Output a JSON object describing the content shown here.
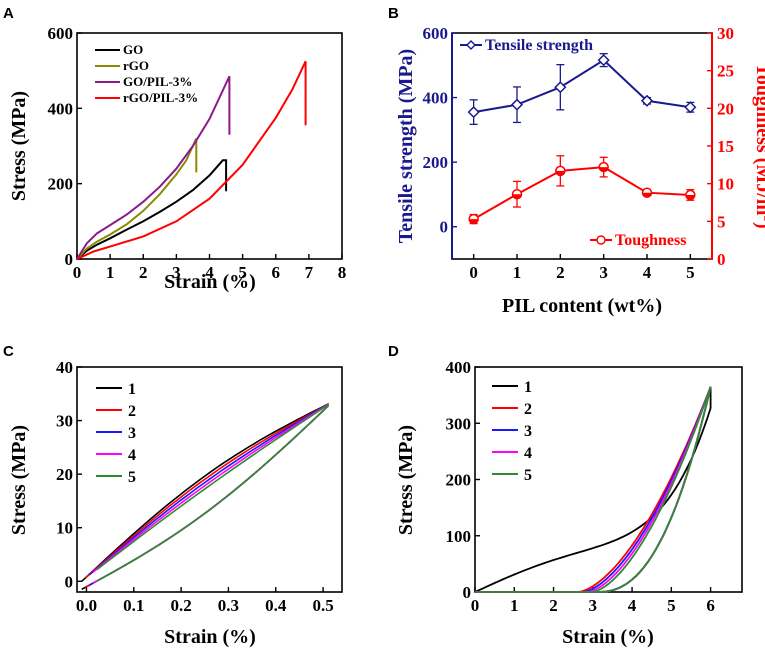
{
  "chart_data": [
    {
      "panel": "A",
      "type": "line",
      "xlabel": "Strain (%)",
      "ylabel": "Stress (MPa)",
      "xlim": [
        0,
        8
      ],
      "ylim": [
        0,
        600
      ],
      "xticks": [
        0,
        1,
        2,
        3,
        4,
        5,
        6,
        7,
        8
      ],
      "yticks": [
        0,
        200,
        400,
        600
      ],
      "legend_position": "top-left",
      "series": [
        {
          "name": "GO",
          "color": "#000000",
          "x": [
            0,
            0.3,
            0.6,
            1.0,
            1.5,
            2.0,
            2.5,
            3.0,
            3.5,
            4.0,
            4.4,
            4.5,
            4.5
          ],
          "y": [
            0,
            22,
            38,
            55,
            78,
            100,
            125,
            152,
            183,
            222,
            262,
            262,
            180
          ]
        },
        {
          "name": "rGO",
          "color": "#8b8b00",
          "x": [
            0,
            0.3,
            0.6,
            1.0,
            1.5,
            2.0,
            2.5,
            3.0,
            3.3,
            3.6,
            3.6
          ],
          "y": [
            0,
            28,
            46,
            65,
            92,
            128,
            172,
            225,
            262,
            320,
            230
          ]
        },
        {
          "name": "GO/PIL-3%",
          "color": "#8b1a8b",
          "x": [
            0,
            0.3,
            0.6,
            1.0,
            1.5,
            2.0,
            2.5,
            3.0,
            3.5,
            4.0,
            4.6,
            4.6
          ],
          "y": [
            0,
            42,
            68,
            90,
            118,
            152,
            192,
            240,
            300,
            372,
            485,
            330
          ]
        },
        {
          "name": "rGO/PIL-3%",
          "color": "#ff0000",
          "x": [
            0,
            0.5,
            1.0,
            2.0,
            3.0,
            4.0,
            5.0,
            6.0,
            6.5,
            6.9,
            6.9
          ],
          "y": [
            0,
            20,
            33,
            60,
            100,
            160,
            250,
            375,
            450,
            525,
            355
          ]
        }
      ]
    },
    {
      "panel": "B",
      "type": "line",
      "xlabel": "PIL content (wt%)",
      "ylabel": "Tensile strength (MPa)",
      "ylabel_right": "Toughness (MJ/m",
      "ylabel_right_sup": "3",
      "ylabel_right_end": ")",
      "categories": [
        0,
        1,
        2,
        3,
        4,
        5
      ],
      "xlim": [
        -0.5,
        5.5
      ],
      "ylim": [
        -100,
        600
      ],
      "xticks": [
        0,
        1,
        2,
        3,
        4,
        5
      ],
      "yticks": [
        0,
        200,
        400,
        600
      ],
      "ylim_right": [
        0,
        30
      ],
      "yticks_right": [
        0,
        5,
        10,
        15,
        20,
        25,
        30
      ],
      "series": [
        {
          "name": "Tensile strength",
          "color": "#1a1a8c",
          "axis": "left",
          "values": [
            355,
            378,
            432,
            516,
            390,
            370
          ],
          "errors": [
            38,
            55,
            70,
            20,
            10,
            15
          ]
        },
        {
          "name": "Toughness",
          "color": "#ff0000",
          "axis": "right",
          "values": [
            5.3,
            8.6,
            11.7,
            12.2,
            8.8,
            8.5
          ],
          "errors": [
            0.6,
            1.7,
            2.0,
            1.3,
            0.4,
            0.7
          ]
        }
      ]
    },
    {
      "panel": "C",
      "type": "line",
      "xlabel": "Strain (%)",
      "ylabel": "Stress (MPa)",
      "xlim": [
        -0.02,
        0.54
      ],
      "ylim": [
        -2,
        40
      ],
      "xticks": [
        0.0,
        0.1,
        0.2,
        0.3,
        0.4,
        0.5
      ],
      "xticklabels": [
        "0.0",
        "0.1",
        "0.2",
        "0.3",
        "0.4",
        "0.5"
      ],
      "yticks": [
        0,
        10,
        20,
        30,
        40
      ],
      "legend_position": "top-left",
      "series": [
        {
          "name": "1",
          "color": "#000000"
        },
        {
          "name": "2",
          "color": "#ff0000"
        },
        {
          "name": "3",
          "color": "#1a1aff"
        },
        {
          "name": "4",
          "color": "#ff00ff"
        },
        {
          "name": "5",
          "color": "#2e8b2e"
        }
      ]
    },
    {
      "panel": "D",
      "type": "line",
      "xlabel": "Strain (%)",
      "ylabel": "Stress (MPa)",
      "xlim": [
        0,
        6.8
      ],
      "ylim": [
        0,
        400
      ],
      "xticks": [
        0,
        1,
        2,
        3,
        4,
        5,
        6
      ],
      "yticks": [
        0,
        100,
        200,
        300,
        400
      ],
      "legend_position": "top-left",
      "series": [
        {
          "name": "1",
          "color": "#000000"
        },
        {
          "name": "2",
          "color": "#ff0000"
        },
        {
          "name": "3",
          "color": "#1a1aff"
        },
        {
          "name": "4",
          "color": "#ff00ff"
        },
        {
          "name": "5",
          "color": "#2e8b2e"
        }
      ]
    }
  ]
}
